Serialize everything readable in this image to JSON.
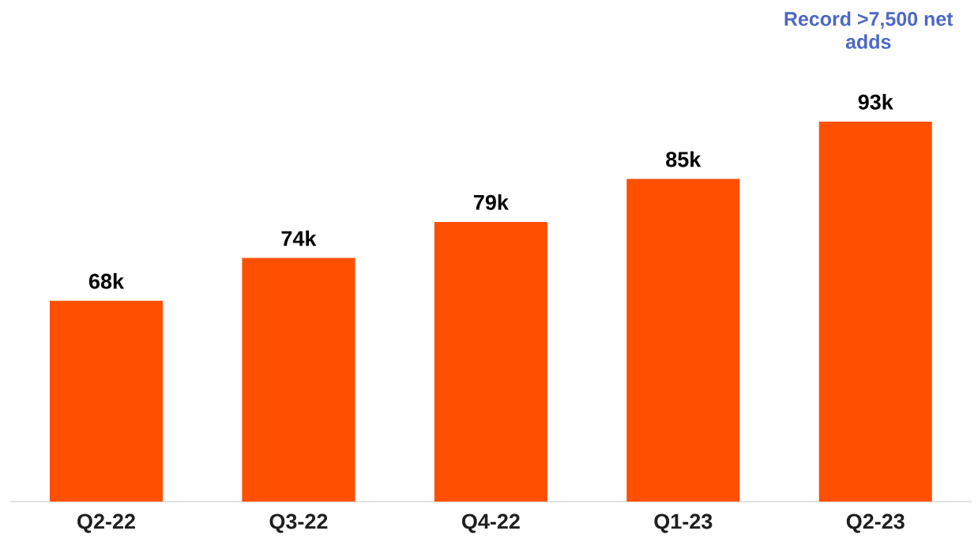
{
  "chart_data": {
    "type": "bar",
    "categories": [
      "Q2-22",
      "Q3-22",
      "Q4-22",
      "Q1-23",
      "Q2-23"
    ],
    "values": [
      68,
      74,
      79,
      85,
      93
    ],
    "value_labels": [
      "68k",
      "74k",
      "79k",
      "85k",
      "93k"
    ],
    "color": "#ff4f00",
    "ylim": [
      40,
      93
    ],
    "tick_labels": "x",
    "annotations": [
      "Record >7,500 net adds"
    ]
  }
}
